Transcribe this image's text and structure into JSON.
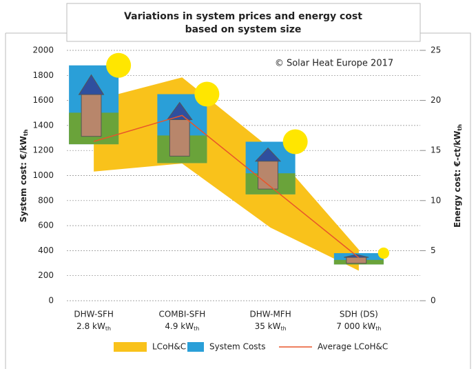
{
  "chart_data": {
    "type": "range-combo",
    "title_lines": [
      "Variations in system prices and energy cost",
      "based on system size"
    ],
    "annotation": "© Solar Heat Europe 2017",
    "ylabel": "System cost: €/kW",
    "y2label": "Energy cost: €-ct/kW",
    "unit_sub": "th",
    "categories": [
      "DHW-SFH",
      "COMBI-SFH",
      "DHW-MFH",
      "SDH (DS)"
    ],
    "sizes": [
      "2.8 kW",
      "4.9 kW",
      "35 kW",
      "7 000 kW"
    ],
    "ylim": [
      0,
      2000
    ],
    "yticks": [
      0,
      200,
      400,
      600,
      800,
      1000,
      1200,
      1400,
      1600,
      1800,
      2000
    ],
    "y2lim": [
      0,
      25
    ],
    "y2ticks": [
      0,
      5,
      10,
      15,
      20,
      25
    ],
    "grid": true,
    "series": [
      {
        "name": "LCoH&C",
        "color": "#f9c21b",
        "axis": "y2",
        "low": [
          12.9,
          13.7,
          7.3,
          3.0
        ],
        "high": [
          20.0,
          22.3,
          15.2,
          5.1
        ]
      },
      {
        "name": "System Costs",
        "color": "#2a9fd8",
        "axis": "y",
        "low": [
          1250,
          1100,
          850,
          290
        ],
        "high": [
          1880,
          1650,
          1270,
          380
        ]
      },
      {
        "name": "Average LCoH&C",
        "color": "#e8552a",
        "axis": "y2",
        "values": [
          15.9,
          18.5,
          11.4,
          4.3
        ]
      }
    ]
  }
}
